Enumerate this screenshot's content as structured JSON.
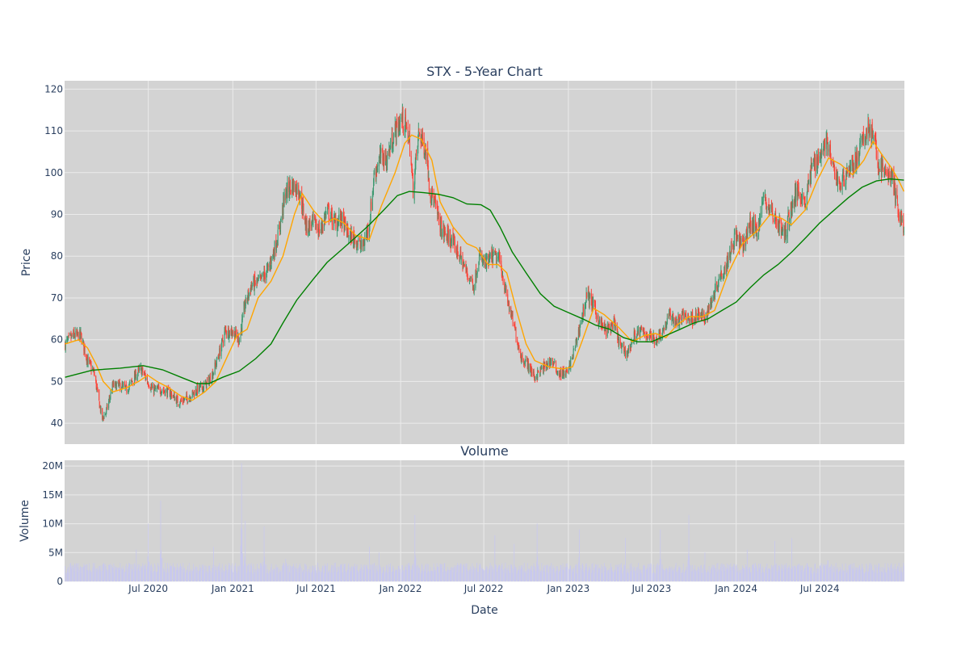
{
  "chart_data": {
    "type": "candlestick",
    "title": "STX - 5-Year Chart",
    "subplot_title": "Volume",
    "ylabel": "Price",
    "volume_ylabel": "Volume",
    "xlabel": "Date",
    "x_range": [
      "2020-01-01",
      "2025-01-01"
    ],
    "ylim": [
      35,
      122
    ],
    "volume_ylim": [
      0,
      21000000
    ],
    "y_ticks": [
      40,
      50,
      60,
      70,
      80,
      90,
      100,
      110,
      120
    ],
    "volume_ticks": [
      {
        "value": 0,
        "label": "0"
      },
      {
        "value": 5000000,
        "label": "5M"
      },
      {
        "value": 10000000,
        "label": "10M"
      },
      {
        "value": 15000000,
        "label": "15M"
      },
      {
        "value": 20000000,
        "label": "20M"
      }
    ],
    "x_ticks": [
      {
        "date": "2020-07-01",
        "label": "Jul 2020"
      },
      {
        "date": "2021-01-01",
        "label": "Jan 2021"
      },
      {
        "date": "2021-07-01",
        "label": "Jul 2021"
      },
      {
        "date": "2022-01-01",
        "label": "Jan 2022"
      },
      {
        "date": "2022-07-01",
        "label": "Jul 2022"
      },
      {
        "date": "2023-01-01",
        "label": "Jan 2023"
      },
      {
        "date": "2023-07-01",
        "label": "Jul 2023"
      },
      {
        "date": "2024-01-01",
        "label": "Jan 2024"
      },
      {
        "date": "2024-07-01",
        "label": "Jul 2024"
      }
    ],
    "grid": true,
    "colors": {
      "plot_bg": "#d3d3d3",
      "grid": "#ebebeb",
      "up": "#3d9970",
      "down": "#ff4136",
      "ma_short": "#ffa500",
      "ma_long": "#008000",
      "volume": "#c8c8ee",
      "text": "#2a3f5f"
    },
    "price_path": [
      [
        "2020-01-02",
        59
      ],
      [
        "2020-01-20",
        61
      ],
      [
        "2020-02-05",
        61
      ],
      [
        "2020-02-20",
        55
      ],
      [
        "2020-03-05",
        52
      ],
      [
        "2020-03-16",
        45
      ],
      [
        "2020-03-23",
        41
      ],
      [
        "2020-04-01",
        43
      ],
      [
        "2020-04-15",
        49
      ],
      [
        "2020-05-01",
        49
      ],
      [
        "2020-05-15",
        48
      ],
      [
        "2020-06-01",
        51
      ],
      [
        "2020-06-15",
        53
      ],
      [
        "2020-06-25",
        51
      ],
      [
        "2020-07-10",
        48
      ],
      [
        "2020-08-01",
        48
      ],
      [
        "2020-08-20",
        47
      ],
      [
        "2020-09-05",
        45
      ],
      [
        "2020-09-25",
        46
      ],
      [
        "2020-10-15",
        48
      ],
      [
        "2020-11-01",
        49
      ],
      [
        "2020-11-15",
        51
      ],
      [
        "2020-12-01",
        56
      ],
      [
        "2020-12-15",
        62
      ],
      [
        "2021-01-01",
        62
      ],
      [
        "2021-01-15",
        60
      ],
      [
        "2021-01-27",
        68
      ],
      [
        "2021-02-10",
        73
      ],
      [
        "2021-03-01",
        74
      ],
      [
        "2021-03-20",
        77
      ],
      [
        "2021-04-10",
        85
      ],
      [
        "2021-04-25",
        95
      ],
      [
        "2021-05-10",
        97
      ],
      [
        "2021-05-25",
        96
      ],
      [
        "2021-06-10",
        87
      ],
      [
        "2021-06-25",
        88
      ],
      [
        "2021-07-10",
        86
      ],
      [
        "2021-07-25",
        91
      ],
      [
        "2021-08-10",
        88
      ],
      [
        "2021-08-25",
        89
      ],
      [
        "2021-09-10",
        85
      ],
      [
        "2021-09-25",
        84
      ],
      [
        "2021-10-10",
        82
      ],
      [
        "2021-10-25",
        88
      ],
      [
        "2021-11-05",
        100
      ],
      [
        "2021-11-20",
        104
      ],
      [
        "2021-12-01",
        103
      ],
      [
        "2021-12-20",
        110
      ],
      [
        "2022-01-05",
        113
      ],
      [
        "2022-01-20",
        108
      ],
      [
        "2022-01-28",
        96
      ],
      [
        "2022-02-10",
        110
      ],
      [
        "2022-02-28",
        104
      ],
      [
        "2022-03-05",
        96
      ],
      [
        "2022-03-15",
        93
      ],
      [
        "2022-04-01",
        86
      ],
      [
        "2022-04-20",
        84
      ],
      [
        "2022-05-10",
        80
      ],
      [
        "2022-05-25",
        76
      ],
      [
        "2022-06-10",
        73
      ],
      [
        "2022-06-20",
        80
      ],
      [
        "2022-07-05",
        78
      ],
      [
        "2022-07-20",
        80
      ],
      [
        "2022-08-05",
        79
      ],
      [
        "2022-08-20",
        70
      ],
      [
        "2022-09-05",
        63
      ],
      [
        "2022-09-20",
        56
      ],
      [
        "2022-10-05",
        54
      ],
      [
        "2022-10-20",
        51
      ],
      [
        "2022-11-05",
        53
      ],
      [
        "2022-11-25",
        55
      ],
      [
        "2022-12-10",
        52
      ],
      [
        "2022-12-30",
        52
      ],
      [
        "2023-01-15",
        58
      ],
      [
        "2023-02-01",
        66
      ],
      [
        "2023-02-10",
        71
      ],
      [
        "2023-02-25",
        68
      ],
      [
        "2023-03-10",
        64
      ],
      [
        "2023-03-25",
        62
      ],
      [
        "2023-04-10",
        64
      ],
      [
        "2023-04-25",
        58
      ],
      [
        "2023-05-10",
        57
      ],
      [
        "2023-05-25",
        61
      ],
      [
        "2023-06-10",
        62
      ],
      [
        "2023-06-25",
        61
      ],
      [
        "2023-07-10",
        60
      ],
      [
        "2023-07-25",
        62
      ],
      [
        "2023-08-10",
        66
      ],
      [
        "2023-08-25",
        64
      ],
      [
        "2023-09-10",
        66
      ],
      [
        "2023-09-25",
        65
      ],
      [
        "2023-10-10",
        66
      ],
      [
        "2023-10-25",
        65
      ],
      [
        "2023-11-10",
        70
      ],
      [
        "2023-11-25",
        75
      ],
      [
        "2023-12-10",
        78
      ],
      [
        "2023-12-30",
        85
      ],
      [
        "2024-01-15",
        82
      ],
      [
        "2024-02-01",
        88
      ],
      [
        "2024-02-15",
        86
      ],
      [
        "2024-03-01",
        94
      ],
      [
        "2024-03-15",
        91
      ],
      [
        "2024-04-01",
        88
      ],
      [
        "2024-04-15",
        85
      ],
      [
        "2024-05-01",
        92
      ],
      [
        "2024-05-15",
        96
      ],
      [
        "2024-05-30",
        93
      ],
      [
        "2024-06-15",
        102
      ],
      [
        "2024-07-01",
        104
      ],
      [
        "2024-07-15",
        108
      ],
      [
        "2024-08-01",
        100
      ],
      [
        "2024-08-15",
        97
      ],
      [
        "2024-09-01",
        101
      ],
      [
        "2024-09-15",
        102
      ],
      [
        "2024-10-01",
        107
      ],
      [
        "2024-10-15",
        111
      ],
      [
        "2024-10-25",
        109
      ],
      [
        "2024-11-05",
        102
      ],
      [
        "2024-11-20",
        100
      ],
      [
        "2024-12-05",
        99
      ],
      [
        "2024-12-20",
        90
      ],
      [
        "2024-12-31",
        87
      ]
    ],
    "ma_long_path": [
      [
        "2020-01-02",
        51
      ],
      [
        "2020-03-01",
        52.7
      ],
      [
        "2020-05-01",
        53.2
      ],
      [
        "2020-06-20",
        53.8
      ],
      [
        "2020-08-01",
        52.8
      ],
      [
        "2020-09-15",
        50.8
      ],
      [
        "2020-10-15",
        49.5
      ],
      [
        "2020-11-10",
        49.5
      ],
      [
        "2020-12-10",
        51
      ],
      [
        "2021-01-15",
        52.5
      ],
      [
        "2021-02-20",
        55.5
      ],
      [
        "2021-03-25",
        59
      ],
      [
        "2021-04-20",
        64
      ],
      [
        "2021-05-20",
        69.5
      ],
      [
        "2021-06-25",
        74.5
      ],
      [
        "2021-07-25",
        78.5
      ],
      [
        "2021-08-25",
        81.5
      ],
      [
        "2021-09-25",
        84.5
      ],
      [
        "2021-10-25",
        87.5
      ],
      [
        "2021-11-25",
        91
      ],
      [
        "2021-12-25",
        94.5
      ],
      [
        "2022-01-20",
        95.5
      ],
      [
        "2022-02-20",
        95.2
      ],
      [
        "2022-03-25",
        94.8
      ],
      [
        "2022-04-25",
        94
      ],
      [
        "2022-05-25",
        92.5
      ],
      [
        "2022-06-25",
        92.3
      ],
      [
        "2022-07-15",
        91
      ],
      [
        "2022-08-05",
        87
      ],
      [
        "2022-09-01",
        81
      ],
      [
        "2022-10-01",
        76
      ],
      [
        "2022-11-01",
        71
      ],
      [
        "2022-12-01",
        68
      ],
      [
        "2023-01-01",
        66.5
      ],
      [
        "2023-02-01",
        65
      ],
      [
        "2023-03-01",
        63.5
      ],
      [
        "2023-04-01",
        62.5
      ],
      [
        "2023-05-01",
        60.5
      ],
      [
        "2023-06-01",
        59.5
      ],
      [
        "2023-07-01",
        59.5
      ],
      [
        "2023-08-01",
        61
      ],
      [
        "2023-09-01",
        62.5
      ],
      [
        "2023-10-01",
        64
      ],
      [
        "2023-11-01",
        65
      ],
      [
        "2023-12-01",
        67
      ],
      [
        "2024-01-01",
        69
      ],
      [
        "2024-02-01",
        72.5
      ],
      [
        "2024-03-01",
        75.5
      ],
      [
        "2024-04-01",
        78
      ],
      [
        "2024-05-01",
        81
      ],
      [
        "2024-06-01",
        84.5
      ],
      [
        "2024-07-01",
        88
      ],
      [
        "2024-08-01",
        91
      ],
      [
        "2024-09-01",
        94
      ],
      [
        "2024-10-01",
        96.5
      ],
      [
        "2024-11-01",
        98
      ],
      [
        "2024-12-01",
        98.5
      ],
      [
        "2024-12-31",
        98.2
      ]
    ],
    "ma_short_path": [
      [
        "2020-01-02",
        59
      ],
      [
        "2020-02-01",
        60
      ],
      [
        "2020-02-20",
        58
      ],
      [
        "2020-03-10",
        54
      ],
      [
        "2020-03-25",
        50
      ],
      [
        "2020-04-15",
        47.5
      ],
      [
        "2020-05-15",
        48.5
      ],
      [
        "2020-06-10",
        50
      ],
      [
        "2020-06-30",
        51.5
      ],
      [
        "2020-07-20",
        50
      ],
      [
        "2020-08-15",
        48.5
      ],
      [
        "2020-09-10",
        46.5
      ],
      [
        "2020-10-05",
        45.5
      ],
      [
        "2020-11-01",
        47.5
      ],
      [
        "2020-11-25",
        50
      ],
      [
        "2020-12-20",
        56
      ],
      [
        "2021-01-10",
        61
      ],
      [
        "2021-02-01",
        62.5
      ],
      [
        "2021-02-25",
        70
      ],
      [
        "2021-03-25",
        74
      ],
      [
        "2021-04-20",
        80
      ],
      [
        "2021-05-15",
        90
      ],
      [
        "2021-06-01",
        95
      ],
      [
        "2021-06-25",
        91
      ],
      [
        "2021-07-20",
        88
      ],
      [
        "2021-08-10",
        89
      ],
      [
        "2021-08-30",
        88
      ],
      [
        "2021-09-25",
        85
      ],
      [
        "2021-10-25",
        84
      ],
      [
        "2021-11-20",
        92
      ],
      [
        "2021-12-20",
        100
      ],
      [
        "2022-01-10",
        107
      ],
      [
        "2022-01-25",
        109
      ],
      [
        "2022-02-15",
        108
      ],
      [
        "2022-03-10",
        103
      ],
      [
        "2022-03-28",
        93
      ],
      [
        "2022-04-25",
        87
      ],
      [
        "2022-05-25",
        83
      ],
      [
        "2022-06-15",
        82
      ],
      [
        "2022-07-10",
        78
      ],
      [
        "2022-08-01",
        78
      ],
      [
        "2022-08-20",
        76
      ],
      [
        "2022-09-10",
        67
      ],
      [
        "2022-10-01",
        59
      ],
      [
        "2022-10-20",
        55
      ],
      [
        "2022-11-20",
        53.5
      ],
      [
        "2022-12-20",
        53
      ],
      [
        "2023-01-10",
        53.5
      ],
      [
        "2023-02-01",
        60
      ],
      [
        "2023-02-25",
        67.5
      ],
      [
        "2023-03-20",
        66
      ],
      [
        "2023-04-20",
        63
      ],
      [
        "2023-05-20",
        59.5
      ],
      [
        "2023-06-15",
        61
      ],
      [
        "2023-07-10",
        61.5
      ],
      [
        "2023-08-01",
        60.5
      ],
      [
        "2023-08-25",
        63.5
      ],
      [
        "2023-09-20",
        65.5
      ],
      [
        "2023-10-20",
        65.5
      ],
      [
        "2023-11-15",
        67
      ],
      [
        "2023-12-15",
        76
      ],
      [
        "2024-01-15",
        83
      ],
      [
        "2024-02-15",
        86
      ],
      [
        "2024-03-15",
        90
      ],
      [
        "2024-04-10",
        89
      ],
      [
        "2024-04-30",
        87.5
      ],
      [
        "2024-05-30",
        91
      ],
      [
        "2024-06-25",
        98
      ],
      [
        "2024-07-20",
        103.5
      ],
      [
        "2024-08-15",
        102
      ],
      [
        "2024-09-10",
        99.5
      ],
      [
        "2024-10-05",
        103
      ],
      [
        "2024-10-25",
        107.5
      ],
      [
        "2024-11-15",
        104
      ],
      [
        "2024-12-05",
        101
      ],
      [
        "2024-12-20",
        98
      ],
      [
        "2024-12-31",
        95.5
      ]
    ],
    "volume_base": 2500000,
    "volume_spikes": [
      [
        "2020-02-15",
        7000000
      ],
      [
        "2020-04-25",
        6500000
      ],
      [
        "2020-06-05",
        5500000
      ],
      [
        "2020-07-01",
        10000000
      ],
      [
        "2020-07-28",
        14000000
      ],
      [
        "2020-11-20",
        6000000
      ],
      [
        "2021-01-20",
        20500000
      ],
      [
        "2021-01-28",
        10500000
      ],
      [
        "2021-03-10",
        9500000
      ],
      [
        "2021-04-25",
        10500000
      ],
      [
        "2021-09-25",
        5500000
      ],
      [
        "2021-10-25",
        6000000
      ],
      [
        "2021-11-15",
        5000000
      ],
      [
        "2022-02-01",
        11500000
      ],
      [
        "2022-02-20",
        5000000
      ],
      [
        "2022-07-25",
        8000000
      ],
      [
        "2022-09-05",
        6500000
      ],
      [
        "2022-10-25",
        10000000
      ],
      [
        "2023-01-25",
        9000000
      ],
      [
        "2023-05-05",
        7500000
      ],
      [
        "2023-07-20",
        9000000
      ],
      [
        "2023-09-20",
        11500000
      ],
      [
        "2023-10-25",
        5000000
      ],
      [
        "2024-01-25",
        5500000
      ],
      [
        "2024-03-25",
        7000000
      ],
      [
        "2024-05-01",
        7500000
      ],
      [
        "2024-07-20",
        9500000
      ],
      [
        "2024-10-20",
        8500000
      ]
    ]
  }
}
